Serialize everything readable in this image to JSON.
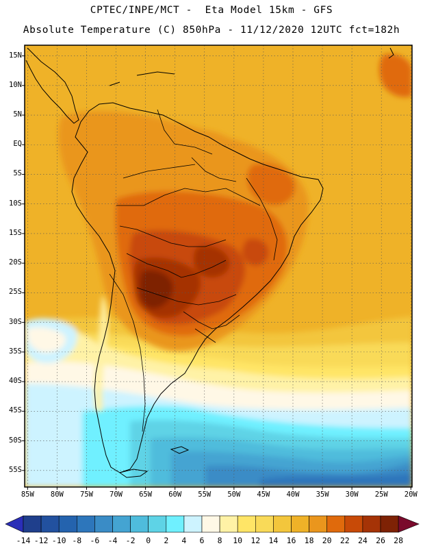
{
  "header": {
    "line1": "CPTEC/INPE/MCT -  Eta Model 15km - GFS",
    "line2": "Absolute Temperature (C) 850hPa - 11/12/2020 12UTC fct=182h"
  },
  "map": {
    "lat_labels": [
      "15N",
      "10N",
      "5N",
      "EQ",
      "5S",
      "10S",
      "15S",
      "20S",
      "25S",
      "30S",
      "35S",
      "40S",
      "45S",
      "50S",
      "55S"
    ],
    "lon_labels": [
      "85W",
      "80W",
      "75W",
      "70W",
      "65W",
      "60W",
      "55W",
      "50W",
      "45W",
      "40W",
      "35W",
      "30W",
      "25W",
      "20W"
    ],
    "lat_values": [
      15,
      10,
      5,
      0,
      -5,
      -10,
      -15,
      -20,
      -25,
      -30,
      -35,
      -40,
      -45,
      -50,
      -55
    ],
    "lon_values": [
      -85,
      -80,
      -75,
      -70,
      -65,
      -60,
      -55,
      -50,
      -45,
      -40,
      -35,
      -30,
      -25,
      -20
    ],
    "extent": {
      "lon_min": -85.5,
      "lon_max": -19.8,
      "lat_min": -57.8,
      "lat_max": 16.8
    }
  },
  "colorbar": {
    "labels": [
      "-14",
      "-12",
      "-10",
      "-8",
      "-6",
      "-4",
      "-2",
      "0",
      "2",
      "4",
      "6",
      "8",
      "10",
      "12",
      "14",
      "16",
      "18",
      "20",
      "22",
      "24",
      "26",
      "28"
    ],
    "colors": [
      "#1f3f8c",
      "#22519f",
      "#2463ae",
      "#2d76bb",
      "#3a8cc6",
      "#44a4d2",
      "#4fbcdc",
      "#5ed3e6",
      "#6ff0ff",
      "#cdf3ff",
      "#fff8e6",
      "#fff2a6",
      "#ffe566",
      "#f9da58",
      "#f3c63c",
      "#efb228",
      "#ea961d",
      "#e06a0c",
      "#c84a07",
      "#a53306",
      "#7e2205"
    ],
    "low_color": "#2a2eb8",
    "high_color": "#7a0a2c"
  }
}
